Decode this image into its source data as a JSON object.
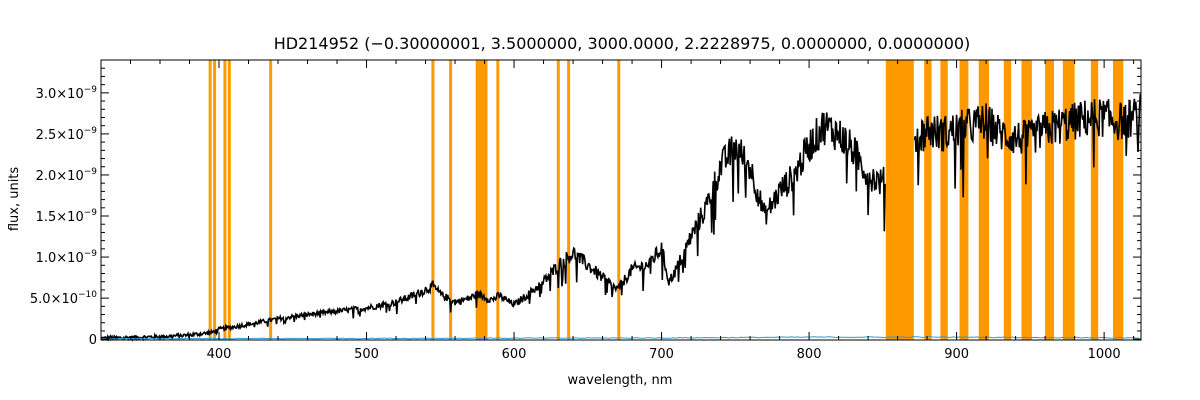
{
  "chart_data": {
    "type": "line",
    "title": "HD214952   (−0.30000001, 3.5000000, 3000.0000, 2.2228975, 0.0000000, 0.0000000)",
    "xlabel": "wavelength, nm",
    "ylabel": "flux, units",
    "xlim": [
      320,
      1025
    ],
    "ylim": [
      -1e-11,
      3.4e-09
    ],
    "x_ticks": [
      400,
      500,
      600,
      700,
      800,
      900,
      1000
    ],
    "x_tick_labels": [
      "400",
      "500",
      "600",
      "700",
      "800",
      "900",
      "1000"
    ],
    "y_ticks": [
      0,
      5e-10,
      1e-09,
      1.5e-09,
      2e-09,
      2.5e-09,
      3e-09
    ],
    "y_tick_labels": [
      {
        "mant": "0",
        "exp": ""
      },
      {
        "mant": "5.0×10",
        "exp": "−10"
      },
      {
        "mant": "1.0×10",
        "exp": "−9"
      },
      {
        "mant": "1.5×10",
        "exp": "−9"
      },
      {
        "mant": "2.0×10",
        "exp": "−9"
      },
      {
        "mant": "2.5×10",
        "exp": "−9"
      },
      {
        "mant": "3.0×10",
        "exp": "−9"
      }
    ],
    "colors": {
      "spectrum": "#000000",
      "masked_regions": "#ff9900",
      "error": "#3399cc"
    },
    "masked_lines": [
      394,
      397,
      404,
      407,
      435,
      545,
      557,
      589,
      630,
      637,
      671
    ],
    "masked_bands": [
      [
        574,
        582
      ],
      [
        852,
        871
      ],
      [
        878,
        883
      ],
      [
        889,
        894
      ],
      [
        902,
        908
      ],
      [
        915,
        922
      ],
      [
        932,
        937
      ],
      [
        944,
        951
      ],
      [
        960,
        966
      ],
      [
        972,
        980
      ],
      [
        991,
        996
      ],
      [
        1006,
        1013
      ]
    ],
    "series": [
      {
        "x": [
          320,
          340,
          360,
          380,
          395,
          400,
          420,
          440,
          460,
          480,
          500,
          520,
          530,
          540,
          545,
          550,
          560,
          570,
          575,
          585,
          590,
          600,
          610,
          620,
          630,
          640,
          650,
          660,
          670,
          680,
          690,
          700,
          705,
          710,
          720,
          730,
          740,
          750,
          760,
          765,
          770,
          780,
          790,
          800,
          810,
          820,
          830,
          840,
          850,
          860,
          870,
          880,
          890,
          900,
          910,
          920,
          930,
          940,
          950,
          960,
          970,
          980,
          990,
          1000,
          1010,
          1020,
          1025
        ],
        "y": [
          1e-11,
          2e-11,
          3e-11,
          5e-11,
          8e-11,
          1.2e-10,
          1.8e-10,
          2.5e-10,
          3e-10,
          3.4e-10,
          3.8e-10,
          4.5e-10,
          5.2e-10,
          6e-10,
          6.5e-10,
          5.5e-10,
          4.5e-10,
          5e-10,
          5.5e-10,
          4.8e-10,
          5.3e-10,
          4.2e-10,
          5.5e-10,
          7e-10,
          9e-10,
          1.05e-09,
          9e-10,
          7.5e-10,
          6e-10,
          8.5e-10,
          9e-10,
          1.1e-09,
          7e-10,
          8.5e-10,
          1.25e-09,
          1.6e-09,
          2.1e-09,
          2.35e-09,
          2.1e-09,
          1.8e-09,
          1.5e-09,
          1.8e-09,
          2e-09,
          2.35e-09,
          2.6e-09,
          2.5e-09,
          2.3e-09,
          2e-09,
          1.9e-09,
          2.5e-09,
          2.4e-09,
          2.55e-09,
          2.5e-09,
          2.55e-09,
          2.6e-09,
          2.65e-09,
          2.5e-09,
          2.45e-09,
          2.45e-09,
          2.55e-09,
          2.6e-09,
          2.65e-09,
          2.7e-09,
          2.7e-09,
          2.65e-09,
          2.7e-09,
          2.75e-09
        ]
      },
      {
        "x": [
          320,
          700,
          800,
          900,
          1025
        ],
        "y": [
          0.0,
          1e-11,
          2e-11,
          2e-11,
          1e-11
        ]
      }
    ],
    "grid": false,
    "legend": "none"
  }
}
